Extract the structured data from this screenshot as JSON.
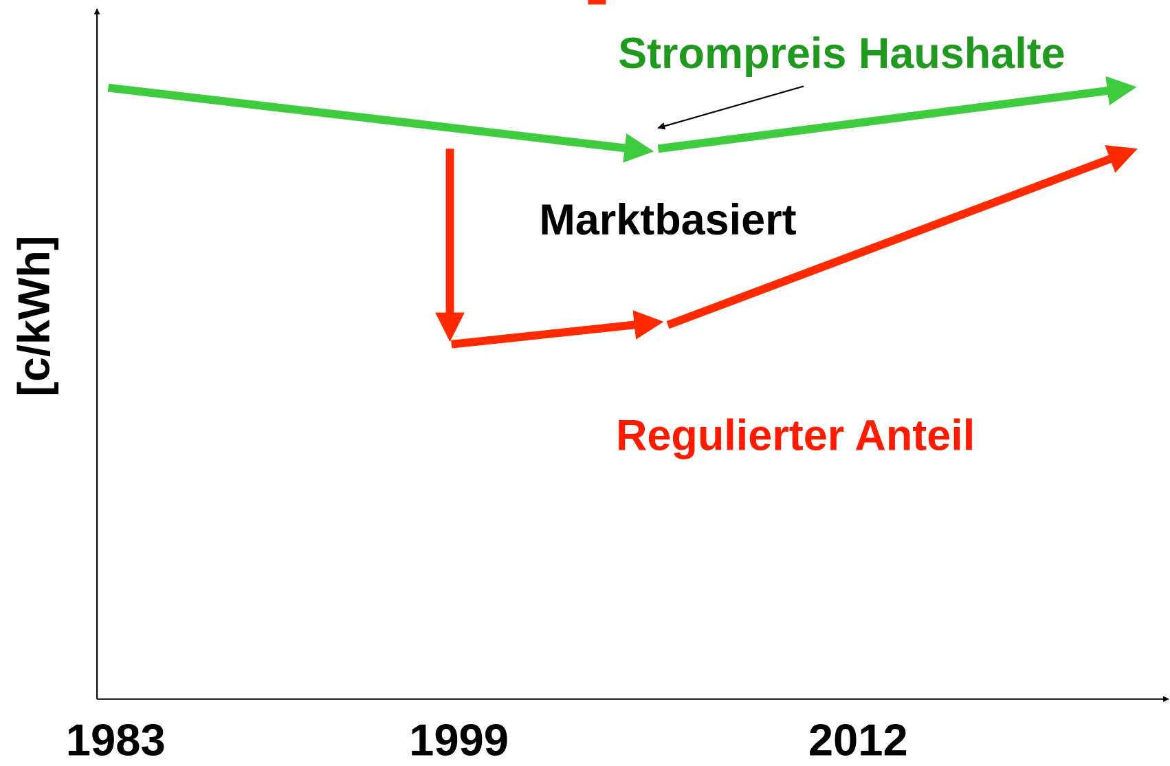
{
  "y_axis_label": "[c/kWh]",
  "x_axis_labels": [
    "1983",
    "1999",
    "2012"
  ],
  "labels": {
    "household_price": "Strompreis Haushalte",
    "market_based": "Marktbasiert",
    "regulated_share": "Regulierter Anteil"
  }
}
